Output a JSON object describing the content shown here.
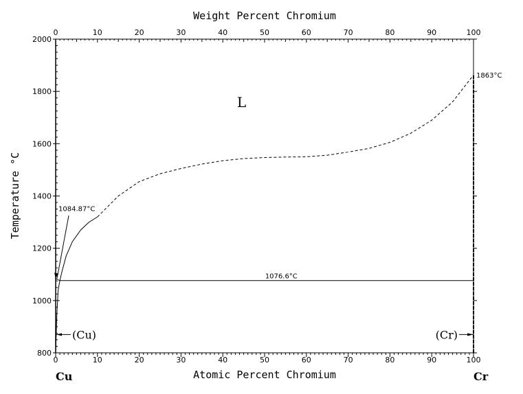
{
  "chart_data": {
    "type": "line",
    "title": "Weight Percent Chromium",
    "xlabel": "Atomic Percent Chromium",
    "ylabel": "Temperature °C",
    "xlim": [
      0,
      100
    ],
    "ylim": [
      800,
      2000
    ],
    "x_ticks": [
      "0",
      "10",
      "20",
      "30",
      "40",
      "50",
      "60",
      "70",
      "80",
      "90",
      "100"
    ],
    "x_tick_values": [
      0,
      10,
      20,
      30,
      40,
      50,
      60,
      70,
      80,
      90,
      100
    ],
    "top_ticks": [
      "0",
      "10",
      "20",
      "30",
      "40",
      "50",
      "60",
      "70",
      "80",
      "90",
      "100"
    ],
    "top_tick_at_percent": [
      0,
      10,
      20,
      30,
      40,
      50,
      60,
      70,
      80,
      90,
      100
    ],
    "y_ticks": [
      "800",
      "1000",
      "1200",
      "1400",
      "1600",
      "1800",
      "2000"
    ],
    "y_tick_values": [
      800,
      1000,
      1200,
      1400,
      1600,
      1800,
      2000
    ],
    "left_element": "Cu",
    "right_element": "Cr",
    "grid": false,
    "series": [
      {
        "name": "liquidus-solid",
        "style": "solid",
        "x": [
          0,
          0.5,
          1.0,
          1.5,
          2.5,
          4,
          6,
          8,
          10
        ],
        "y": [
          1084.87,
          1080,
          1076.6,
          1110,
          1170,
          1225,
          1270,
          1300,
          1320
        ]
      },
      {
        "name": "liquidus-dashed",
        "style": "dashed",
        "x": [
          10,
          15,
          20,
          25,
          30,
          35,
          40,
          45,
          50,
          55,
          60,
          65,
          70,
          75,
          80,
          85,
          90,
          95,
          100
        ],
        "y": [
          1320,
          1400,
          1455,
          1485,
          1505,
          1522,
          1535,
          1543,
          1547,
          1549,
          1550,
          1556,
          1568,
          1582,
          1605,
          1640,
          1690,
          1760,
          1863
        ]
      },
      {
        "name": "eutectic-line",
        "style": "solid",
        "x": [
          1.0,
          100
        ],
        "y": [
          1076.6,
          1076.6
        ]
      },
      {
        "name": "cu-solvus",
        "style": "solid",
        "x": [
          0,
          0.3,
          0.6,
          1.0
        ],
        "y": [
          800,
          950,
          1040,
          1076.6
        ]
      },
      {
        "name": "cr-solvus",
        "style": "dashed",
        "x": [
          100,
          100
        ],
        "y": [
          800,
          1863
        ]
      }
    ],
    "annotations": [
      {
        "text": "L",
        "x": 44.5,
        "y": 1740
      },
      {
        "text": "1863°C",
        "x": 100,
        "y": 1863
      },
      {
        "text": "1084.87°C",
        "x": 0,
        "y": 1084.87
      },
      {
        "text": "1076.6°C",
        "x": 54,
        "y": 1076.6
      },
      {
        "text": "(Cu)",
        "x": 0,
        "y": 870
      },
      {
        "text": "(Cr)",
        "x": 100,
        "y": 870
      }
    ]
  }
}
